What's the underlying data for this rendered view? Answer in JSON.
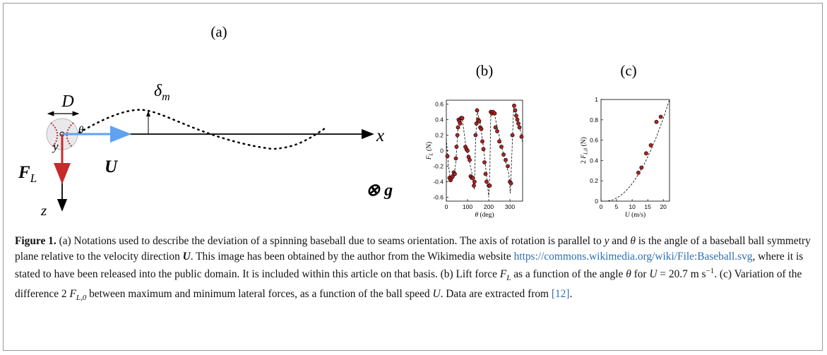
{
  "diagram": {
    "label": "(a)",
    "diameter": "D",
    "deviation": {
      "text": "δ",
      "sub": "m"
    },
    "angle": "θ",
    "axis_y": "y",
    "velocity": "U",
    "lift": {
      "text": "F",
      "sub": "L"
    },
    "axis_z": "z",
    "axis_x": "x",
    "gravity": "⊗ g"
  },
  "chart_data": [
    {
      "type": "scatter",
      "label": "(b)",
      "xlabel": [
        {
          "text": "θ",
          "style": "i"
        },
        {
          "text": " (deg)"
        }
      ],
      "ylabel": [
        {
          "text": "F",
          "style": "i"
        },
        {
          "text": "L",
          "style": "sub"
        },
        {
          "text": " (N)"
        }
      ],
      "xlim": [
        0,
        360
      ],
      "ylim": [
        -0.65,
        0.65
      ],
      "xticks": [
        0,
        100,
        200,
        300
      ],
      "yticks": [
        -0.6,
        -0.4,
        -0.2,
        0,
        0.2,
        0.4,
        0.6
      ],
      "points": {
        "color": "#b22222",
        "x": [
          5,
          15,
          20,
          25,
          30,
          35,
          40,
          45,
          48,
          52,
          55,
          58,
          62,
          65,
          70,
          75,
          90,
          95,
          100,
          105,
          110,
          115,
          120,
          125,
          130,
          133,
          138,
          142,
          145,
          150,
          155,
          160,
          165,
          170,
          175,
          180,
          185,
          190,
          200,
          205,
          210,
          215,
          220,
          228,
          232,
          240,
          250,
          260,
          270,
          280,
          290,
          300,
          305,
          312,
          320,
          325,
          330,
          335,
          340,
          345,
          355
        ],
        "y": [
          -0.07,
          -0.35,
          -0.38,
          -0.35,
          -0.33,
          -0.28,
          -0.3,
          -0.1,
          0.05,
          0.2,
          0.3,
          0.4,
          0.38,
          0.35,
          0.42,
          0.42,
          0.05,
          0.02,
          0,
          -0.08,
          -0.12,
          -0.33,
          -0.35,
          -0.35,
          -0.45,
          -0.4,
          0.2,
          0.35,
          0.52,
          0.4,
          0.38,
          0.3,
          0.28,
          0.12,
          0.02,
          -0.15,
          -0.3,
          -0.4,
          -0.45,
          -0.45,
          0.5,
          0.48,
          0.5,
          0.48,
          0.3,
          0.25,
          0.12,
          0.05,
          -0.05,
          -0.12,
          -0.2,
          -0.4,
          -0.42,
          0.2,
          0.58,
          0.52,
          0.45,
          0.4,
          0.35,
          0.3,
          0.18
        ]
      },
      "fit": {
        "color": "#000000",
        "dashed": true,
        "x": [
          0,
          10,
          20,
          35,
          45,
          55,
          65,
          75,
          90,
          110,
          125,
          132,
          138,
          145,
          160,
          175,
          195,
          200,
          205,
          210,
          225,
          240,
          270,
          295,
          302,
          310,
          318,
          335,
          355,
          360
        ],
        "y": [
          0.15,
          -0.2,
          -0.38,
          -0.35,
          -0.15,
          0.3,
          0.42,
          0.42,
          0.1,
          -0.15,
          -0.35,
          -0.5,
          0.1,
          0.52,
          0.35,
          0.05,
          -0.45,
          -0.6,
          -0.3,
          0.5,
          0.5,
          0.3,
          -0.05,
          -0.3,
          -0.55,
          0,
          0.58,
          0.42,
          0.2,
          0.1
        ]
      }
    },
    {
      "type": "scatter",
      "label": "(c)",
      "xlabel": [
        {
          "text": "U",
          "style": "i"
        },
        {
          "text": " (m/s)"
        }
      ],
      "ylabel": [
        {
          "text": "2 "
        },
        {
          "text": "F",
          "style": "i"
        },
        {
          "text": "L,0",
          "style": "sub"
        },
        {
          "text": " (N)"
        }
      ],
      "xlim": [
        0,
        22
      ],
      "ylim": [
        0,
        1
      ],
      "xticks": [
        0,
        5,
        10,
        15,
        20
      ],
      "yticks": [
        0,
        0.2,
        0.4,
        0.6,
        0.8,
        1
      ],
      "points": {
        "color": "#b22222",
        "x": [
          12,
          13,
          14.5,
          16,
          17.8,
          19.2
        ],
        "y": [
          0.28,
          0.33,
          0.47,
          0.55,
          0.78,
          0.83
        ]
      },
      "fit": {
        "color": "#000000",
        "dashed": true,
        "x": [
          0,
          1.5,
          2,
          4,
          6,
          8,
          10,
          12,
          14,
          16,
          18,
          20,
          22
        ],
        "y": [
          0,
          0,
          0.001,
          0.015,
          0.048,
          0.1,
          0.172,
          0.262,
          0.372,
          0.5,
          0.648,
          0.815,
          1.0
        ]
      }
    }
  ],
  "caption": {
    "segments": [
      {
        "text": "Figure 1.",
        "style": "b"
      },
      {
        "text": " (a) Notations used to describe the deviation of a spinning baseball due to seams orientation. The axis of rotation is parallel to "
      },
      {
        "text": "y",
        "style": "i"
      },
      {
        "text": " and "
      },
      {
        "text": "θ",
        "style": "i"
      },
      {
        "text": " is the angle of a baseball ball symmetry plane relative to the velocity direction "
      },
      {
        "text": "U",
        "style": "bi"
      },
      {
        "text": ". This image has been obtained by the author from the Wikimedia website "
      },
      {
        "text": "https://commons.wikimedia.org/wiki/File:Baseball.svg",
        "style": "link"
      },
      {
        "text": ", where it is stated to have been released into the public domain. It is included within this article on that basis. (b) Lift force "
      },
      {
        "text": "F",
        "style": "i"
      },
      {
        "text": "L",
        "style": "sub"
      },
      {
        "text": " as a function of the angle "
      },
      {
        "text": "θ",
        "style": "i"
      },
      {
        "text": " for "
      },
      {
        "text": "U",
        "style": "i"
      },
      {
        "text": " = 20.7 m s"
      },
      {
        "text": "−1",
        "style": "sup"
      },
      {
        "text": ". (c) Variation of the difference 2 "
      },
      {
        "text": "F",
        "style": "i"
      },
      {
        "text": "L,0",
        "style": "sub"
      },
      {
        "text": " between maximum and minimum lateral forces, as a function of the ball speed "
      },
      {
        "text": "U",
        "style": "i"
      },
      {
        "text": ". Data are extracted from "
      },
      {
        "text": "[12]",
        "style": "link"
      },
      {
        "text": "."
      }
    ]
  }
}
